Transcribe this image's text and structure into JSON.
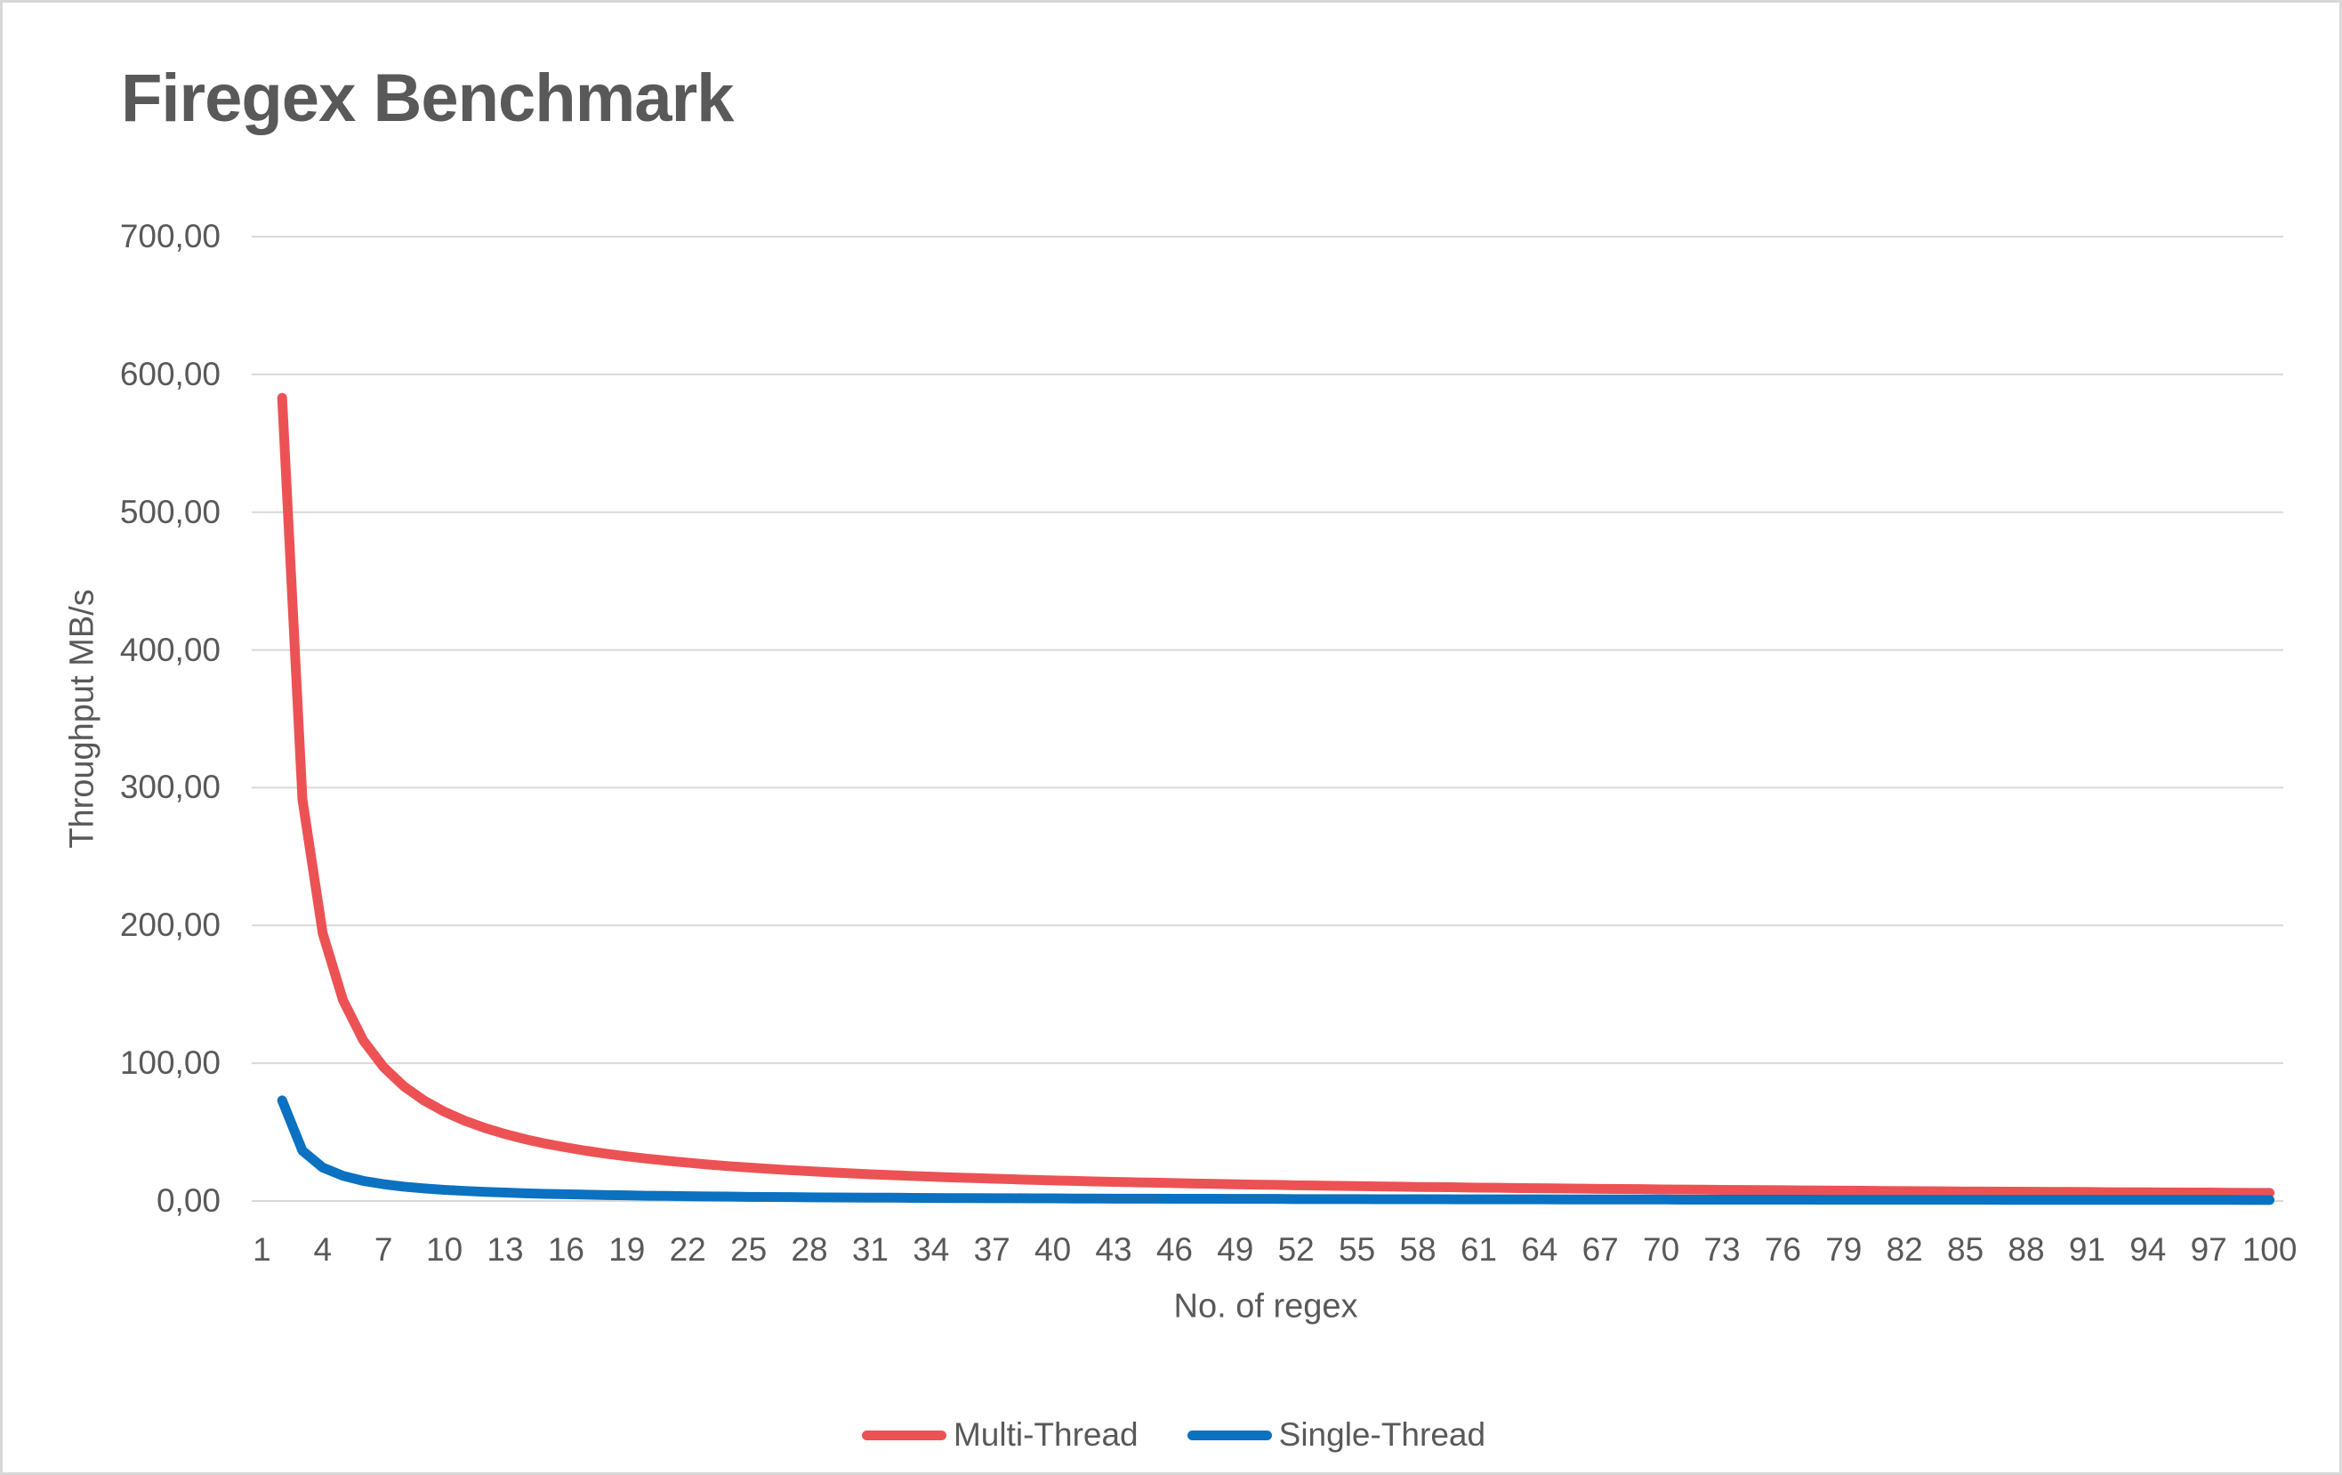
{
  "colors": {
    "background": "#ffffff",
    "border": "#d8d8d8",
    "gridline": "#d9d9d9",
    "text": "#595959",
    "multi_thread": "#ec5254",
    "single_thread": "#0b71c1"
  },
  "chart_data": {
    "type": "line",
    "title": "Firegex Benchmark",
    "xlabel": "No. of regex",
    "ylabel": "Throughput MB/s",
    "grid": "horizontal",
    "legend_position": "bottom",
    "ylim": [
      0,
      700
    ],
    "xlim_categories": [
      1,
      100
    ],
    "y_axis": {
      "values": [
        700,
        600,
        500,
        400,
        300,
        200,
        100,
        0
      ],
      "labels": [
        "700,00",
        "600,00",
        "500,00",
        "400,00",
        "300,00",
        "200,00",
        "100,00",
        "0,00"
      ]
    },
    "x_axis": {
      "tick_values": [
        1,
        4,
        7,
        10,
        13,
        16,
        19,
        22,
        25,
        28,
        31,
        34,
        37,
        40,
        43,
        46,
        49,
        52,
        55,
        58,
        61,
        64,
        67,
        70,
        73,
        76,
        79,
        82,
        85,
        88,
        91,
        94,
        97,
        100
      ]
    },
    "x": [
      2,
      3,
      4,
      5,
      6,
      7,
      8,
      9,
      10,
      11,
      12,
      13,
      14,
      15,
      16,
      17,
      18,
      19,
      20,
      21,
      22,
      23,
      24,
      25,
      26,
      27,
      28,
      29,
      30,
      31,
      32,
      33,
      34,
      35,
      36,
      37,
      38,
      39,
      40,
      41,
      42,
      43,
      44,
      45,
      46,
      47,
      48,
      49,
      50,
      51,
      52,
      53,
      54,
      55,
      56,
      57,
      58,
      59,
      60,
      61,
      62,
      63,
      64,
      65,
      66,
      67,
      68,
      69,
      70,
      71,
      72,
      73,
      74,
      75,
      76,
      77,
      78,
      79,
      80,
      81,
      82,
      83,
      84,
      85,
      86,
      87,
      88,
      89,
      90,
      91,
      92,
      93,
      94,
      95,
      96,
      97,
      98,
      99,
      100
    ],
    "series": [
      {
        "name": "Multi-Thread",
        "color": "#ec5254",
        "values": [
          583,
          291.5,
          194.3,
          145.8,
          116.6,
          97.2,
          83.3,
          72.9,
          64.8,
          58.3,
          53,
          48.6,
          44.8,
          41.6,
          38.9,
          36.4,
          34.3,
          32.4,
          30.7,
          29.2,
          27.8,
          26.5,
          25.3,
          24.3,
          23.3,
          22.4,
          21.6,
          20.8,
          20.1,
          19.4,
          18.8,
          18.2,
          17.7,
          17.1,
          16.7,
          16.2,
          15.8,
          15.3,
          14.9,
          14.6,
          14.2,
          13.9,
          13.6,
          13.3,
          13,
          12.7,
          12.4,
          12.1,
          11.9,
          11.7,
          11.4,
          11.2,
          11,
          10.8,
          10.6,
          10.4,
          10.2,
          10.1,
          9.9,
          9.7,
          9.6,
          9.4,
          9.3,
          9.1,
          9,
          8.8,
          8.7,
          8.6,
          8.4,
          8.3,
          8.2,
          8.1,
          8,
          7.9,
          7.8,
          7.7,
          7.6,
          7.5,
          7.4,
          7.3,
          7.2,
          7.1,
          7,
          6.9,
          6.9,
          6.8,
          6.7,
          6.6,
          6.6,
          6.5,
          6.4,
          6.3,
          6.3,
          6.2,
          6.1,
          6.1,
          6,
          5.9,
          5.9
        ]
      },
      {
        "name": "Single-Thread",
        "color": "#0b71c1",
        "values": [
          73,
          36.5,
          24.3,
          18.3,
          14.6,
          12.2,
          10.4,
          9.1,
          8.1,
          7.3,
          6.6,
          6.1,
          5.6,
          5.2,
          4.9,
          4.6,
          4.3,
          4.1,
          3.8,
          3.7,
          3.5,
          3.3,
          3.2,
          3,
          2.9,
          2.8,
          2.7,
          2.6,
          2.5,
          2.4,
          2.4,
          2.3,
          2.2,
          2.1,
          2.1,
          2,
          2,
          1.9,
          1.9,
          1.8,
          1.8,
          1.7,
          1.7,
          1.7,
          1.6,
          1.6,
          1.6,
          1.5,
          1.5,
          1.5,
          1.4,
          1.4,
          1.4,
          1.4,
          1.3,
          1.3,
          1.3,
          1.3,
          1.2,
          1.2,
          1.2,
          1.2,
          1.2,
          1.1,
          1.1,
          1.1,
          1.1,
          1.1,
          1.1,
          1,
          1,
          1,
          1,
          1,
          1,
          1,
          0.9,
          0.9,
          0.9,
          0.9,
          0.9,
          0.9,
          0.9,
          0.9,
          0.9,
          0.8,
          0.8,
          0.8,
          0.8,
          0.8,
          0.8,
          0.8,
          0.8,
          0.8,
          0.8,
          0.8,
          0.8,
          0.7,
          0.7
        ]
      }
    ]
  }
}
